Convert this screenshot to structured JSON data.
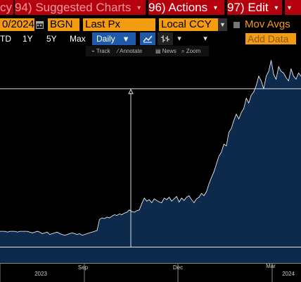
{
  "menubar": {
    "ccy_fragment": "cy",
    "suggested": {
      "num": "94)",
      "label": "Suggested Charts"
    },
    "actions": {
      "num": "96)",
      "label": "Actions"
    },
    "edit": {
      "num": "97)",
      "label": "Edit"
    },
    "arrow": "▾"
  },
  "fields": {
    "date": "0/2024",
    "source": "BGN",
    "price_field": "Last Px",
    "currency": "Local CCY",
    "mov_avgs": "Mov Avgs"
  },
  "periods": {
    "td": "TD",
    "y1": "1Y",
    "y5": "5Y",
    "max": "Max",
    "frequency": "Daily",
    "add_data": "Add Data"
  },
  "tools": {
    "track": "Track",
    "annotate": "Annotate",
    "news": "News",
    "zoom": "Zoom"
  },
  "chart_data": {
    "type": "area",
    "x_labels": [
      "2023",
      "Sep",
      "Dec",
      "Mar",
      "2024"
    ],
    "series": [
      {
        "values": [
          100,
          100,
          100,
          99,
          100,
          100,
          100,
          99,
          100,
          100,
          100,
          100,
          99,
          98,
          99,
          100,
          99,
          97,
          98,
          99,
          96,
          97,
          98,
          99,
          97,
          96,
          95,
          96,
          97,
          98,
          97,
          96,
          97,
          95,
          96,
          97,
          98,
          99,
          100,
          101,
          115,
          117,
          116,
          118,
          117,
          119,
          121,
          120,
          122,
          121,
          123,
          124,
          127,
          125,
          124,
          126,
          127,
          135,
          142,
          138,
          140,
          136,
          141,
          139,
          137,
          136,
          142,
          140,
          143,
          138,
          141,
          144,
          137,
          142,
          139,
          143,
          145,
          140,
          136,
          141,
          143,
          148,
          145,
          150,
          160,
          168,
          175,
          185,
          195,
          200,
          210,
          208,
          225,
          230,
          240,
          248,
          242,
          250,
          255,
          268,
          262,
          272,
          276,
          284,
          296,
          290,
          280,
          296,
          302,
          316,
          298,
          292,
          308,
          302,
          300,
          294,
          290,
          305,
          296,
          292,
          300,
          296
        ]
      }
    ],
    "line_color": "#ffffff",
    "fill_color": "#0d2a4d",
    "background": "#000000",
    "ref_line_high": 280,
    "ref_line_low": 80,
    "gridlines": false
  }
}
